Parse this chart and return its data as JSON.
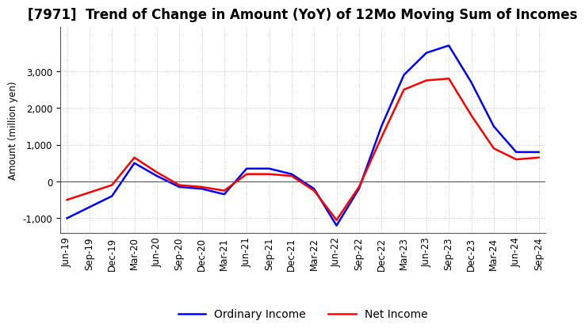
{
  "title": "[7971]  Trend of Change in Amount (YoY) of 12Mo Moving Sum of Incomes",
  "ylabel": "Amount (million yen)",
  "x_labels": [
    "Jun-19",
    "Sep-19",
    "Dec-19",
    "Mar-20",
    "Jun-20",
    "Sep-20",
    "Dec-20",
    "Mar-21",
    "Jun-21",
    "Sep-21",
    "Dec-21",
    "Mar-22",
    "Jun-22",
    "Sep-22",
    "Dec-22",
    "Mar-23",
    "Jun-23",
    "Sep-23",
    "Dec-23",
    "Mar-24",
    "Jun-24",
    "Sep-24"
  ],
  "ordinary_income": [
    -1000,
    -700,
    -400,
    500,
    150,
    -150,
    -200,
    -350,
    350,
    350,
    200,
    -200,
    -1200,
    -200,
    1500,
    2900,
    3500,
    3700,
    2700,
    1500,
    800,
    800
  ],
  "net_income": [
    -500,
    -300,
    -100,
    650,
    250,
    -100,
    -150,
    -250,
    200,
    200,
    150,
    -250,
    -1050,
    -150,
    1200,
    2500,
    2750,
    2800,
    1800,
    900,
    600,
    650
  ],
  "ordinary_color": "#0000ff",
  "net_color": "#ff0000",
  "ylim_min": -1400,
  "ylim_max": 4200,
  "yticks": [
    -1000,
    0,
    1000,
    2000,
    3000
  ],
  "background_color": "#ffffff",
  "plot_bg_color": "#ffffff",
  "grid_color": "#bbbbbb",
  "title_fontsize": 12,
  "axis_fontsize": 8.5,
  "legend_fontsize": 10,
  "line_width": 1.8
}
